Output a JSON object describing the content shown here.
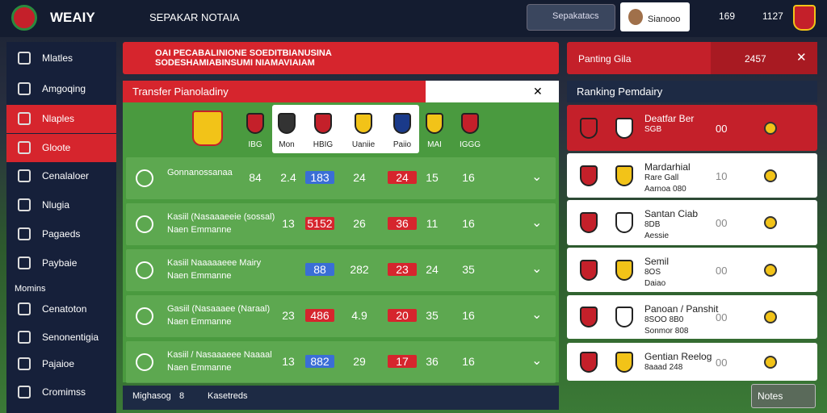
{
  "header": {
    "logo_text": "WEAIY",
    "title": "SEPAKAR NOTAIA",
    "search": "Sepakatacs",
    "user": "Sianooo",
    "stat_1": "169",
    "stat_2": "1127"
  },
  "sidebar": {
    "items": [
      "Mlatles",
      "Amgoqing",
      "Nlaples",
      "Gloote",
      "Cenalaloer",
      "Nlugia",
      "Pagaeds",
      "Paybaie"
    ],
    "section": "Momins",
    "section_items": [
      "Cenatoton",
      "Senonentigia",
      "Pajaioe",
      "Cromimss"
    ]
  },
  "banner": {
    "text": "OAI PECABALINIONE SOEDITBIANUSINA SODESHAMIABINSUMI NIAMAVIAIAM"
  },
  "panel": {
    "title": "Transfer Pianoladiny",
    "teams": [
      "IBG",
      "Mon",
      "HBIG",
      "Uaniie",
      "Paiio",
      "MAI",
      "IGGG"
    ],
    "rows": [
      {
        "name": "Gonnanossanaa",
        "sub": "",
        "cells": [
          "84",
          "2.4",
          "183",
          "24",
          "24",
          "15",
          "16"
        ]
      },
      {
        "name": "Kasiil (Nasaaaeeie (sossal)",
        "sub": "Naen Emmanne",
        "cells": [
          "13",
          "5152",
          "26",
          "36",
          "11",
          "16"
        ]
      },
      {
        "name": "Kasiil Naaaaaeee Mairy",
        "sub": "Naen Emmanne",
        "cells": [
          "88",
          "282",
          "23",
          "24",
          "35"
        ]
      },
      {
        "name": "Gasiil (Nasaaaee (Naraal)",
        "sub": "Naen Emmanne",
        "cells": [
          "23",
          "486",
          "4.9",
          "20",
          "35",
          "16"
        ]
      },
      {
        "name": "Kasiil / Nasaaaeee Naaaal",
        "sub": "Naen Emmanne",
        "cells": [
          "13",
          "882",
          "29",
          "17",
          "36",
          "16"
        ]
      }
    ],
    "footer_left": "Mighasog",
    "footer_num": "8",
    "footer_mid": "Kasetreds"
  },
  "ranking": {
    "search_label": "Panting Gila",
    "search_value": "2457",
    "title": "Ranking Pemdairy",
    "items": [
      {
        "name": "Deatfar Ber",
        "lines": [
          "SGB"
        ],
        "value": "00"
      },
      {
        "name": "Mardarhial",
        "lines": [
          "Rare Gall",
          "Aarnoa 080"
        ],
        "value": "10"
      },
      {
        "name": "Santan Ciab",
        "lines": [
          "8DB",
          "Aessie"
        ],
        "value": "00"
      },
      {
        "name": "Semil",
        "lines": [
          "8OS",
          "Daiao"
        ],
        "value": "00"
      },
      {
        "name": "Panoan / Panshit",
        "lines": [
          "8SOO 8B0",
          "Sonmor 808"
        ],
        "value": "00"
      },
      {
        "name": "Gentian Reelog",
        "lines": [
          "8aaad 248"
        ],
        "value": "00"
      }
    ],
    "button": "Notes"
  }
}
